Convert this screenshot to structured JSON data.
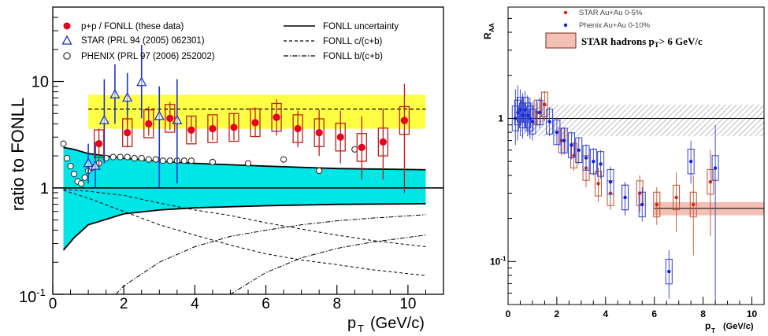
{
  "chart_data": [
    {
      "type": "scatter",
      "ylabel": "ratio to FONLL",
      "xlabel": "p",
      "xlabel_sub": "T",
      "xlabel_unit": "(GeV/c)",
      "xlim": [
        0,
        11
      ],
      "ylim": [
        0.1,
        50
      ],
      "yscale": "log",
      "xticks": [
        "0",
        "2",
        "4",
        "6",
        "8",
        "10"
      ],
      "yticks": [
        {
          "value": 10,
          "label": "10"
        },
        {
          "value": 1,
          "label": "1"
        },
        {
          "value": 0.1,
          "base": "10",
          "exp": "-1"
        }
      ],
      "legend_left": [
        {
          "label": "p+p / FONLL (these data)",
          "marker": "filled-circle"
        },
        {
          "label": "STAR (PRL 94 (2005) 062301)",
          "marker": "open-triangle"
        },
        {
          "label": "PHENIX (PRL 97 (2006) 252002)",
          "marker": "open-circle"
        }
      ],
      "legend_right": [
        {
          "label": "FONLL uncertainty",
          "line": "solid"
        },
        {
          "label": "FONLL c/(c+b)",
          "line": "dashed"
        },
        {
          "label": "FONLL b/(c+b)",
          "line": "dashdot"
        }
      ],
      "colors": {
        "band": "#00e5e5",
        "norm_band": "#ffff33",
        "data": "#e8001c",
        "star": "#1a35c8",
        "phenix": "#333333"
      },
      "norm_band": [
        3.6,
        7.5
      ],
      "norm_line": 5.5,
      "band_upper": [
        [
          0.3,
          2.4
        ],
        [
          0.6,
          2.3
        ],
        [
          1,
          2.1
        ],
        [
          2,
          1.9
        ],
        [
          3,
          1.78
        ],
        [
          4,
          1.7
        ],
        [
          6,
          1.6
        ],
        [
          8,
          1.52
        ],
        [
          10.5,
          1.48
        ]
      ],
      "band_lower": [
        [
          0.3,
          0.26
        ],
        [
          0.6,
          0.34
        ],
        [
          1,
          0.45
        ],
        [
          2,
          0.57
        ],
        [
          3,
          0.62
        ],
        [
          4,
          0.65
        ],
        [
          6,
          0.68
        ],
        [
          8,
          0.7
        ],
        [
          10.5,
          0.71
        ]
      ],
      "series": [
        {
          "name": "p+p / FONLL (these data)",
          "points": [
            {
              "x": 1.3,
              "y": 2.6,
              "ylo": 1.6,
              "yhi": 3.6
            },
            {
              "x": 2.1,
              "y": 3.3,
              "ylo": 2.4,
              "yhi": 4.8
            },
            {
              "x": 2.7,
              "y": 4.0,
              "ylo": 3.1,
              "yhi": 5.8
            },
            {
              "x": 3.3,
              "y": 4.5,
              "ylo": 3.5,
              "yhi": 6.4
            },
            {
              "x": 3.9,
              "y": 3.5,
              "ylo": 2.7,
              "yhi": 4.7
            },
            {
              "x": 4.5,
              "y": 3.6,
              "ylo": 2.8,
              "yhi": 4.7
            },
            {
              "x": 5.1,
              "y": 3.7,
              "ylo": 2.8,
              "yhi": 5.0
            },
            {
              "x": 5.7,
              "y": 4.1,
              "ylo": 3.0,
              "yhi": 5.7
            },
            {
              "x": 6.3,
              "y": 4.6,
              "ylo": 3.1,
              "yhi": 6.8
            },
            {
              "x": 6.9,
              "y": 3.6,
              "ylo": 2.4,
              "yhi": 5.3
            },
            {
              "x": 7.5,
              "y": 3.3,
              "ylo": 2.0,
              "yhi": 5.4
            },
            {
              "x": 8.1,
              "y": 3.0,
              "ylo": 1.7,
              "yhi": 5.3
            },
            {
              "x": 8.7,
              "y": 2.4,
              "ylo": 1.2,
              "yhi": 4.7
            },
            {
              "x": 9.3,
              "y": 2.7,
              "ylo": 1.2,
              "yhi": 5.6
            },
            {
              "x": 9.9,
              "y": 4.3,
              "ylo": 0.9,
              "yhi": 9.5
            }
          ]
        },
        {
          "name": "STAR (PRL 94 (2005) 062301)",
          "points": [
            {
              "x": 1.0,
              "y": 1.7,
              "ylo": 1.1,
              "yhi": 2.6
            },
            {
              "x": 1.2,
              "y": 1.6,
              "ylo": 1.0,
              "yhi": 2.7
            },
            {
              "x": 1.45,
              "y": 4.3,
              "ylo": 1.7,
              "yhi": 10.5
            },
            {
              "x": 1.75,
              "y": 7.5,
              "ylo": 4.0,
              "yhi": 14.5
            },
            {
              "x": 2.1,
              "y": 7.0,
              "ylo": 4.0,
              "yhi": 12.0
            },
            {
              "x": 2.5,
              "y": 9.8,
              "ylo": 4.5,
              "yhi": 22.0
            },
            {
              "x": 3.0,
              "y": 4.7,
              "ylo": 1.0,
              "yhi": 9.0
            },
            {
              "x": 3.5,
              "y": 4.3,
              "ylo": 1.1,
              "yhi": 10.5
            }
          ]
        },
        {
          "name": "PHENIX (PRL 97 (2006) 252002)",
          "points": [
            {
              "x": 0.3,
              "y": 2.6
            },
            {
              "x": 0.4,
              "y": 1.9
            },
            {
              "x": 0.5,
              "y": 1.6
            },
            {
              "x": 0.6,
              "y": 1.35
            },
            {
              "x": 0.7,
              "y": 1.15
            },
            {
              "x": 0.8,
              "y": 1.1
            },
            {
              "x": 0.9,
              "y": 1.25
            },
            {
              "x": 1.0,
              "y": 1.45
            },
            {
              "x": 1.1,
              "y": 1.55
            },
            {
              "x": 1.3,
              "y": 1.7
            },
            {
              "x": 1.5,
              "y": 1.9
            },
            {
              "x": 1.7,
              "y": 1.95
            },
            {
              "x": 1.9,
              "y": 1.95
            },
            {
              "x": 2.1,
              "y": 1.95
            },
            {
              "x": 2.3,
              "y": 1.9
            },
            {
              "x": 2.5,
              "y": 1.9
            },
            {
              "x": 2.7,
              "y": 1.85
            },
            {
              "x": 2.9,
              "y": 1.85
            },
            {
              "x": 3.1,
              "y": 1.8
            },
            {
              "x": 3.3,
              "y": 1.8
            },
            {
              "x": 3.5,
              "y": 1.8
            },
            {
              "x": 3.7,
              "y": 1.8
            },
            {
              "x": 3.9,
              "y": 1.8
            },
            {
              "x": 4.5,
              "y": 1.75
            },
            {
              "x": 5.5,
              "y": 1.7
            },
            {
              "x": 6.5,
              "y": 1.85
            },
            {
              "x": 7.5,
              "y": 1.45
            },
            {
              "x": 8.5,
              "y": 2.3
            }
          ]
        }
      ]
    },
    {
      "type": "scatter",
      "ylabel": "R",
      "ylabel_sub": "AA",
      "xlabel": "p",
      "xlabel_sub": "T",
      "xlabel_unit": "(GeV/c)",
      "xlim": [
        0,
        10.5
      ],
      "ylim": [
        0.05,
        6
      ],
      "yscale": "log",
      "xticks": [
        "0",
        "2",
        "4",
        "6",
        "8",
        "10"
      ],
      "yticks": [
        {
          "value": 1,
          "label": "1"
        },
        {
          "value": 0.1,
          "base": "10",
          "exp": "-1"
        }
      ],
      "legend": [
        {
          "label": "STAR Au+Au 0-5%",
          "marker": "red-dot"
        },
        {
          "label": "Phenix Au+Au  0-10%",
          "marker": "blue-dot"
        }
      ],
      "hadron_band": {
        "label": "STAR hadrons p",
        "label_sub": "T",
        "label_tail": "> 6 GeV/c",
        "x": [
          6,
          10.5
        ],
        "y": [
          0.21,
          0.26
        ]
      },
      "norm_box": {
        "x": [
          0.5,
          10.5
        ],
        "y": [
          0.75,
          1.25
        ]
      },
      "colors": {
        "star": "#e02010",
        "phenix": "#1020e0",
        "hadron": "#f2c0b4"
      },
      "series": [
        {
          "name": "STAR Au+Au 0-5%",
          "points": [
            {
              "x": 1.2,
              "y": 1.1,
              "ylo": 0.9,
              "yhi": 1.3
            },
            {
              "x": 1.5,
              "y": 1.25,
              "ylo": 0.95,
              "yhi": 1.55
            },
            {
              "x": 2.2,
              "y": 0.7,
              "ylo": 0.55,
              "yhi": 0.85
            },
            {
              "x": 2.7,
              "y": 0.55,
              "ylo": 0.43,
              "yhi": 0.68
            },
            {
              "x": 3.2,
              "y": 0.45,
              "ylo": 0.33,
              "yhi": 0.58
            },
            {
              "x": 3.7,
              "y": 0.35,
              "ylo": 0.26,
              "yhi": 0.45
            },
            {
              "x": 4.2,
              "y": 0.3,
              "ylo": 0.23,
              "yhi": 0.38
            },
            {
              "x": 4.8,
              "y": 0.28,
              "ylo": 0.21,
              "yhi": 0.36
            },
            {
              "x": 5.4,
              "y": 0.3,
              "ylo": 0.22,
              "yhi": 0.4
            },
            {
              "x": 6.1,
              "y": 0.25,
              "ylo": 0.18,
              "yhi": 0.33
            },
            {
              "x": 6.9,
              "y": 0.28,
              "ylo": 0.16,
              "yhi": 0.42
            },
            {
              "x": 7.6,
              "y": 0.25,
              "ylo": 0.11,
              "yhi": 0.4
            },
            {
              "x": 8.3,
              "y": 0.36,
              "ylo": 0.15,
              "yhi": 0.6
            }
          ]
        },
        {
          "name": "Phenix Au+Au  0-10%",
          "points": [
            {
              "x": 0.3,
              "y": 1.0,
              "ylo": 0.65,
              "yhi": 1.6
            },
            {
              "x": 0.4,
              "y": 1.1,
              "ylo": 0.7,
              "yhi": 1.7
            },
            {
              "x": 0.5,
              "y": 1.15,
              "ylo": 0.75,
              "yhi": 1.6
            },
            {
              "x": 0.6,
              "y": 1.05,
              "ylo": 0.72,
              "yhi": 1.5
            },
            {
              "x": 0.7,
              "y": 1.15,
              "ylo": 0.8,
              "yhi": 1.55
            },
            {
              "x": 0.8,
              "y": 1.05,
              "ylo": 0.75,
              "yhi": 1.45
            },
            {
              "x": 0.9,
              "y": 1.0,
              "ylo": 0.72,
              "yhi": 1.4
            },
            {
              "x": 1.0,
              "y": 0.95,
              "ylo": 0.7,
              "yhi": 1.3
            },
            {
              "x": 1.3,
              "y": 1.1,
              "ylo": 0.85,
              "yhi": 1.4
            },
            {
              "x": 1.7,
              "y": 0.95,
              "ylo": 0.75,
              "yhi": 1.2
            },
            {
              "x": 2.0,
              "y": 0.8,
              "ylo": 0.65,
              "yhi": 1.0
            },
            {
              "x": 2.3,
              "y": 0.7,
              "ylo": 0.56,
              "yhi": 0.86
            },
            {
              "x": 2.6,
              "y": 0.65,
              "ylo": 0.52,
              "yhi": 0.8
            },
            {
              "x": 2.9,
              "y": 0.6,
              "ylo": 0.48,
              "yhi": 0.74
            },
            {
              "x": 3.2,
              "y": 0.53,
              "ylo": 0.43,
              "yhi": 0.66
            },
            {
              "x": 3.5,
              "y": 0.5,
              "ylo": 0.4,
              "yhi": 0.62
            },
            {
              "x": 3.8,
              "y": 0.48,
              "ylo": 0.38,
              "yhi": 0.6
            },
            {
              "x": 4.2,
              "y": 0.36,
              "ylo": 0.28,
              "yhi": 0.46
            },
            {
              "x": 4.8,
              "y": 0.28,
              "ylo": 0.21,
              "yhi": 0.36
            },
            {
              "x": 5.5,
              "y": 0.25,
              "ylo": 0.19,
              "yhi": 0.33
            },
            {
              "x": 6.6,
              "y": 0.085,
              "ylo": 0.055,
              "yhi": 0.12
            },
            {
              "x": 7.5,
              "y": 0.5,
              "ylo": 0.35,
              "yhi": 0.7
            },
            {
              "x": 8.5,
              "y": 0.45,
              "ylo": 0.05,
              "yhi": 0.9
            }
          ]
        }
      ]
    }
  ]
}
